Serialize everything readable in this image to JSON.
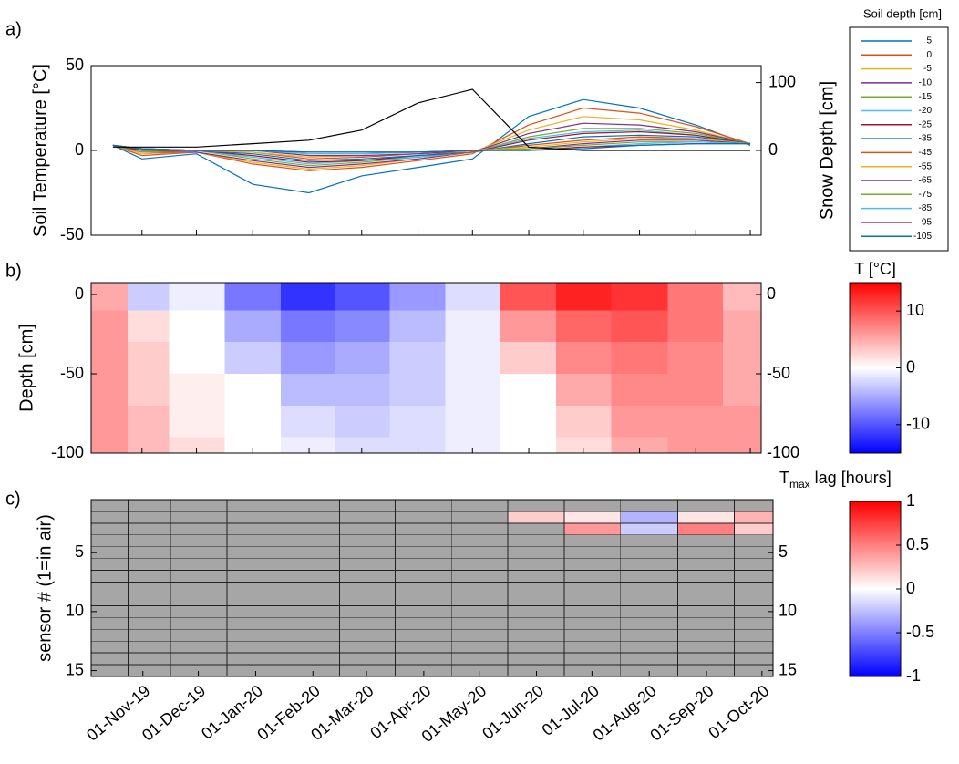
{
  "chart_data": [
    {
      "type": "line",
      "panel_label": "a)",
      "ylabel": "Soil Temperature [°C]",
      "y2label": "Snow Depth [cm]",
      "legend_title": "Soil depth [cm]",
      "x": [
        "2019-10-16",
        "2019-11-01",
        "2019-12-01",
        "2020-01-01",
        "2020-02-01",
        "2020-03-01",
        "2020-04-01",
        "2020-05-01",
        "2020-06-01",
        "2020-07-01",
        "2020-08-01",
        "2020-09-01",
        "2020-10-01"
      ],
      "xlim": [
        "2019-10-04",
        "2020-10-07"
      ],
      "ylim": [
        -50,
        50
      ],
      "yticks": [
        -50,
        0,
        50
      ],
      "y2lim": [
        -125,
        125
      ],
      "y2ticks": [
        0,
        100
      ],
      "series": [
        {
          "name": "5",
          "color": "#0072BD",
          "values": [
            3,
            -5,
            -2,
            -20,
            -25,
            -15,
            -10,
            -5,
            20,
            30,
            25,
            15,
            3
          ]
        },
        {
          "name": "0",
          "color": "#D95319",
          "values": [
            3,
            -3,
            -1,
            -8,
            -12,
            -10,
            -6,
            -2,
            15,
            25,
            22,
            14,
            4
          ]
        },
        {
          "name": "-5",
          "color": "#EDB120",
          "values": [
            3,
            -2,
            -1,
            -7,
            -11,
            -9,
            -5,
            -1,
            12,
            20,
            18,
            12,
            4
          ]
        },
        {
          "name": "-10",
          "color": "#7E2F8E",
          "values": [
            3,
            -1,
            -1,
            -6,
            -10,
            -8,
            -5,
            -1,
            10,
            16,
            15,
            11,
            4
          ]
        },
        {
          "name": "-15",
          "color": "#77AC30",
          "values": [
            3,
            -1,
            0,
            -5,
            -9,
            -7,
            -4,
            -1,
            8,
            13,
            13,
            10,
            4
          ]
        },
        {
          "name": "-20",
          "color": "#4DBEEE",
          "values": [
            3,
            0,
            0,
            -4,
            -8,
            -6,
            -4,
            -1,
            7,
            11,
            12,
            9,
            4
          ]
        },
        {
          "name": "-25",
          "color": "#A2142F",
          "values": [
            3,
            0,
            0,
            -3,
            -7,
            -6,
            -3,
            -1,
            6,
            10,
            11,
            9,
            4
          ]
        },
        {
          "name": "-35",
          "color": "#0072BD",
          "values": [
            3,
            1,
            0,
            -2,
            -6,
            -5,
            -3,
            -1,
            4,
            8,
            9,
            8,
            4
          ]
        },
        {
          "name": "-45",
          "color": "#D95319",
          "values": [
            3,
            1,
            0,
            -1,
            -5,
            -4,
            -2,
            -1,
            3,
            6,
            8,
            7,
            4
          ]
        },
        {
          "name": "-55",
          "color": "#EDB120",
          "values": [
            3,
            1,
            0,
            -1,
            -4,
            -3,
            -2,
            0,
            2,
            5,
            7,
            7,
            4
          ]
        },
        {
          "name": "-65",
          "color": "#7E2F8E",
          "values": [
            3,
            1,
            0,
            0,
            -3,
            -3,
            -2,
            0,
            1,
            4,
            6,
            6,
            4
          ]
        },
        {
          "name": "-75",
          "color": "#77AC30",
          "values": [
            3,
            1,
            0,
            0,
            -2,
            -2,
            -1,
            0,
            1,
            3,
            5,
            5,
            4
          ]
        },
        {
          "name": "-85",
          "color": "#4DBEEE",
          "values": [
            3,
            1,
            0,
            0,
            -2,
            -2,
            -1,
            0,
            0,
            2,
            4,
            5,
            4
          ]
        },
        {
          "name": "-95",
          "color": "#A2142F",
          "values": [
            3,
            1,
            0,
            0,
            -1,
            -1,
            -1,
            0,
            0,
            2,
            3,
            4,
            4
          ]
        },
        {
          "name": "-105",
          "color": "#0072BD",
          "values": [
            3,
            1,
            0,
            0,
            -1,
            -1,
            -1,
            0,
            0,
            1,
            3,
            4,
            4
          ]
        },
        {
          "axis": "y2",
          "color": "#000000",
          "values": [
            5,
            5,
            5,
            10,
            15,
            30,
            70,
            90,
            5,
            0,
            0,
            0,
            0
          ]
        }
      ]
    },
    {
      "type": "heatmap",
      "panel_label": "b)",
      "ylabel": "Depth [cm]",
      "colorbar_label": "T [°C]",
      "x": [
        "2019-10-16",
        "2019-11-01",
        "2019-12-01",
        "2020-01-01",
        "2020-02-01",
        "2020-03-01",
        "2020-04-01",
        "2020-05-01",
        "2020-06-01",
        "2020-07-01",
        "2020-08-01",
        "2020-09-01",
        "2020-10-01"
      ],
      "y": [
        0,
        -20,
        -40,
        -60,
        -80,
        -100
      ],
      "z": [
        [
          5,
          -3,
          -1,
          -8,
          -12,
          -10,
          -6,
          -2,
          10,
          13,
          12,
          8,
          4
        ],
        [
          6,
          2,
          0,
          -5,
          -8,
          -7,
          -4,
          -1,
          6,
          9,
          10,
          8,
          5
        ],
        [
          6,
          3,
          0,
          -3,
          -6,
          -5,
          -3,
          -1,
          3,
          7,
          8,
          7,
          5
        ],
        [
          6,
          3,
          1,
          0,
          -4,
          -4,
          -3,
          -1,
          0,
          5,
          7,
          7,
          5
        ],
        [
          6,
          4,
          1,
          0,
          -2,
          -3,
          -2,
          -1,
          0,
          3,
          6,
          6,
          6
        ],
        [
          6,
          4,
          2,
          0,
          -1,
          -2,
          -2,
          -1,
          0,
          2,
          5,
          6,
          6
        ]
      ],
      "xlim": [
        "2019-10-04",
        "2020-10-07"
      ],
      "ylim": [
        -100,
        7.5
      ],
      "yticks": [
        -100,
        -50,
        0
      ],
      "clim": [
        -15,
        15
      ],
      "cticks": [
        -10,
        0,
        10
      ],
      "cmap": [
        "#0000ff",
        "#ffffff",
        "#ff0000"
      ]
    },
    {
      "type": "heatmap",
      "panel_label": "c)",
      "ylabel": "sensor # (1=in air)",
      "colorbar_label_parts": [
        "T",
        "max",
        "lag [hours]"
      ],
      "x": [
        "2019-10-16",
        "2019-11-01",
        "2019-12-01",
        "2020-01-01",
        "2020-02-01",
        "2020-03-01",
        "2020-04-01",
        "2020-05-01",
        "2020-06-01",
        "2020-07-01",
        "2020-08-01",
        "2020-09-01",
        "2020-10-01"
      ],
      "y": [
        1,
        2,
        3,
        4,
        5,
        6,
        7,
        8,
        9,
        10,
        11,
        12,
        13,
        14,
        15
      ],
      "z": [
        [
          null,
          null,
          null,
          null,
          null,
          null,
          null,
          null,
          null,
          null,
          null,
          null,
          null
        ],
        [
          null,
          null,
          null,
          null,
          null,
          null,
          null,
          null,
          0.2,
          0.1,
          -0.3,
          0.1,
          0.3
        ],
        [
          null,
          null,
          null,
          null,
          null,
          null,
          null,
          null,
          null,
          0.4,
          -0.2,
          0.5,
          0.2
        ],
        [
          null,
          null,
          null,
          null,
          null,
          null,
          null,
          null,
          null,
          null,
          null,
          null,
          null
        ],
        [
          null,
          null,
          null,
          null,
          null,
          null,
          null,
          null,
          null,
          null,
          null,
          null,
          null
        ],
        [
          null,
          null,
          null,
          null,
          null,
          null,
          null,
          null,
          null,
          null,
          null,
          null,
          null
        ],
        [
          null,
          null,
          null,
          null,
          null,
          null,
          null,
          null,
          null,
          null,
          null,
          null,
          null
        ],
        [
          null,
          null,
          null,
          null,
          null,
          null,
          null,
          null,
          null,
          null,
          null,
          null,
          null
        ],
        [
          null,
          null,
          null,
          null,
          null,
          null,
          null,
          null,
          null,
          null,
          null,
          null,
          null
        ],
        [
          null,
          null,
          null,
          null,
          null,
          null,
          null,
          null,
          null,
          null,
          null,
          null,
          null
        ],
        [
          null,
          null,
          null,
          null,
          null,
          null,
          null,
          null,
          null,
          null,
          null,
          null,
          null
        ],
        [
          null,
          null,
          null,
          null,
          null,
          null,
          null,
          null,
          null,
          null,
          null,
          null,
          null
        ],
        [
          null,
          null,
          null,
          null,
          null,
          null,
          null,
          null,
          null,
          null,
          null,
          null,
          null
        ],
        [
          null,
          null,
          null,
          null,
          null,
          null,
          null,
          null,
          null,
          null,
          null,
          null,
          null
        ],
        [
          null,
          null,
          null,
          null,
          null,
          null,
          null,
          null,
          null,
          null,
          null,
          null,
          null
        ]
      ],
      "nan_color": "#a6a6a6",
      "xlim": [
        "2019-10-04",
        "2020-10-07"
      ],
      "ylim": [
        15.5,
        0.5
      ],
      "yticks": [
        5,
        10,
        15
      ],
      "xticks": [
        {
          "value": "2019-11-01",
          "label": "01-Nov-19"
        },
        {
          "value": "2019-12-01",
          "label": "01-Dec-19"
        },
        {
          "value": "2020-01-01",
          "label": "01-Jan-20"
        },
        {
          "value": "2020-02-01",
          "label": "01-Feb-20"
        },
        {
          "value": "2020-03-01",
          "label": "01-Mar-20"
        },
        {
          "value": "2020-04-01",
          "label": "01-Apr-20"
        },
        {
          "value": "2020-05-01",
          "label": "01-May-20"
        },
        {
          "value": "2020-06-01",
          "label": "01-Jun-20"
        },
        {
          "value": "2020-07-01",
          "label": "01-Jul-20"
        },
        {
          "value": "2020-08-01",
          "label": "01-Aug-20"
        },
        {
          "value": "2020-09-01",
          "label": "01-Sep-20"
        },
        {
          "value": "2020-10-01",
          "label": "01-Oct-20"
        }
      ],
      "clim": [
        -1,
        1
      ],
      "cticks": [
        -1,
        -0.5,
        0,
        0.5,
        1
      ],
      "cmap": [
        "#0000ff",
        "#ffffff",
        "#ff0000"
      ]
    }
  ]
}
